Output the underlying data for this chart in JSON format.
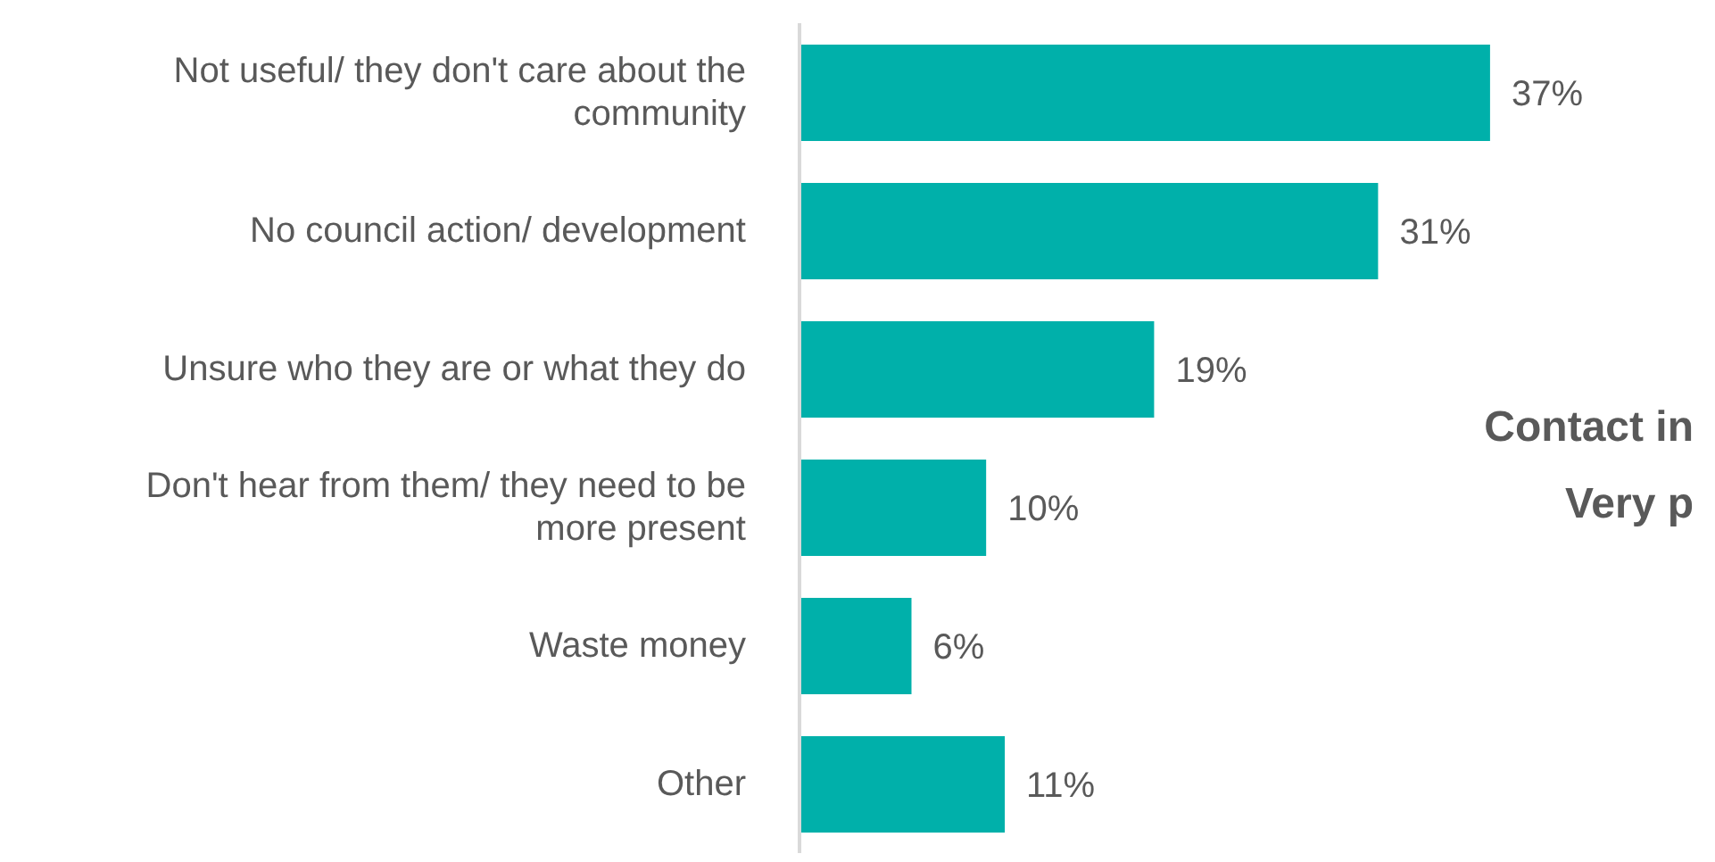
{
  "chart_data": {
    "type": "bar",
    "orientation": "horizontal",
    "categories": [
      "Not useful/ they don't care about the community",
      "No council action/ development",
      "Unsure who they are or what they do",
      "Don't hear from them/ they need to be more present",
      "Waste money",
      "Other"
    ],
    "values": [
      37,
      31,
      19,
      10,
      6,
      11
    ],
    "value_labels": [
      "37%",
      "31%",
      "19%",
      "10%",
      "6%",
      "11%"
    ],
    "color": "#00b0aa",
    "tick_labels": "y",
    "annotations": [
      "Contact in",
      "Very p"
    ]
  }
}
